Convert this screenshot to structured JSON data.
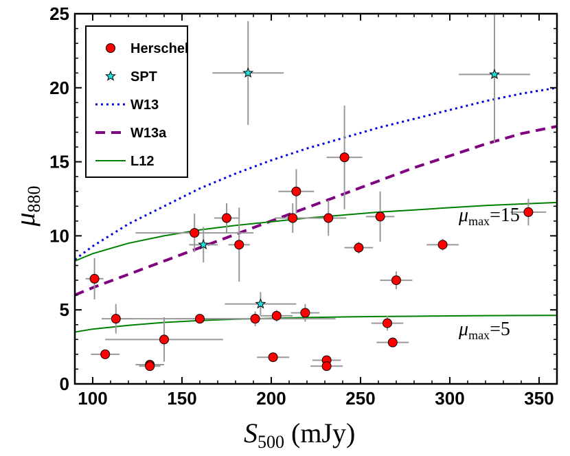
{
  "chart_data": {
    "type": "scatter",
    "xlabel": {
      "main": "S",
      "sub": "500",
      "unit": "(mJy)"
    },
    "ylabel": {
      "main": "μ",
      "sub": "880"
    },
    "xlim": [
      90,
      360
    ],
    "ylim": [
      0,
      25
    ],
    "x_ticks": [
      100,
      150,
      200,
      250,
      300,
      350
    ],
    "y_ticks": [
      0,
      5,
      10,
      15,
      20,
      25
    ],
    "grid": false,
    "legend_position": "top-left",
    "legend": [
      {
        "label": "Herschel",
        "style": "marker-circle",
        "color": "#ff0000"
      },
      {
        "label": "SPT",
        "style": "marker-star",
        "color": "#20e0e0"
      },
      {
        "label": "W13",
        "style": "dotted",
        "color": "#0000dd"
      },
      {
        "label": "W13a",
        "style": "dashed",
        "color": "#800080"
      },
      {
        "label": "L12",
        "style": "solid",
        "color": "#008000"
      }
    ],
    "annotations": [
      {
        "prefix": "μ",
        "sub": "max",
        "suffix": "=15",
        "x": 305,
        "y": 11
      },
      {
        "prefix": "μ",
        "sub": "max",
        "suffix": "=5",
        "x": 305,
        "y": 3.3
      }
    ],
    "series": [
      {
        "name": "Herschel",
        "type": "scatter",
        "points": [
          {
            "x": 101,
            "y": 7.1,
            "xerr": 5,
            "yerr": 1.4
          },
          {
            "x": 107,
            "y": 2.0,
            "xerr": 8,
            "yerr": 0
          },
          {
            "x": 113,
            "y": 4.4,
            "xerr": 8,
            "yerr": 1.0
          },
          {
            "x": 132,
            "y": 1.3,
            "xerr": 8,
            "yerr": 0.2
          },
          {
            "x": 132,
            "y": 1.2,
            "xerr": 6,
            "yerr": 0.1
          },
          {
            "x": 140,
            "y": 3.0,
            "xerr": 33,
            "yerr": 1.5
          },
          {
            "x": 157,
            "y": 10.2,
            "xerr": 33,
            "yerr": 1.3
          },
          {
            "x": 160,
            "y": 4.4,
            "xerr": 45,
            "yerr": 0.3
          },
          {
            "x": 175,
            "y": 11.2,
            "xerr": 7,
            "yerr": 1.0
          },
          {
            "x": 182,
            "y": 9.4,
            "xerr": 6,
            "yerr": 2.5
          },
          {
            "x": 191,
            "y": 4.4,
            "xerr": 45,
            "yerr": 0.5
          },
          {
            "x": 201,
            "y": 1.8,
            "xerr": 9,
            "yerr": 0.3
          },
          {
            "x": 203,
            "y": 4.6,
            "xerr": 9,
            "yerr": 0.4
          },
          {
            "x": 212,
            "y": 11.2,
            "xerr": 10,
            "yerr": 1.0
          },
          {
            "x": 214,
            "y": 13.0,
            "xerr": 10,
            "yerr": 1.5
          },
          {
            "x": 219,
            "y": 4.8,
            "xerr": 8,
            "yerr": 0.6
          },
          {
            "x": 231,
            "y": 1.6,
            "xerr": 8,
            "yerr": 0.3
          },
          {
            "x": 231,
            "y": 1.2,
            "xerr": 9,
            "yerr": 0.2
          },
          {
            "x": 232,
            "y": 11.2,
            "xerr": 10,
            "yerr": 1.2
          },
          {
            "x": 241,
            "y": 15.3,
            "xerr": 10,
            "yerr": 3.5
          },
          {
            "x": 249,
            "y": 9.2,
            "xerr": 8,
            "yerr": 0.4
          },
          {
            "x": 261,
            "y": 11.3,
            "xerr": 8,
            "yerr": 1.7
          },
          {
            "x": 265,
            "y": 4.1,
            "xerr": 9,
            "yerr": 0.5
          },
          {
            "x": 268,
            "y": 2.8,
            "xerr": 9,
            "yerr": 0.2
          },
          {
            "x": 270,
            "y": 7.0,
            "xerr": 9,
            "yerr": 0.6
          },
          {
            "x": 296,
            "y": 9.4,
            "xerr": 9,
            "yerr": 0.4
          },
          {
            "x": 344,
            "y": 11.6,
            "xerr": 10,
            "yerr": 0.9
          }
        ]
      },
      {
        "name": "SPT",
        "type": "scatter",
        "points": [
          {
            "x": 162,
            "y": 9.4,
            "xerr": 8,
            "yerr": 1.2
          },
          {
            "x": 187,
            "y": 21.0,
            "xerr": 20,
            "yerr": 3.5
          },
          {
            "x": 194,
            "y": 5.4,
            "xerr": 20,
            "yerr": 0.8
          },
          {
            "x": 325,
            "y": 20.9,
            "xerr": 20,
            "yerr": 4.6
          }
        ]
      },
      {
        "name": "W13",
        "type": "line",
        "x": [
          90,
          100,
          120,
          140,
          160,
          180,
          200,
          220,
          240,
          260,
          280,
          300,
          320,
          340,
          360
        ],
        "y": [
          8.4,
          9.3,
          10.8,
          12.0,
          13.2,
          14.2,
          15.1,
          15.9,
          16.6,
          17.3,
          17.9,
          18.5,
          19.1,
          19.6,
          20.0
        ]
      },
      {
        "name": "W13a",
        "type": "line",
        "x": [
          90,
          100,
          120,
          140,
          160,
          180,
          200,
          220,
          240,
          260,
          280,
          300,
          320,
          340,
          360
        ],
        "y": [
          6.0,
          6.5,
          7.4,
          8.3,
          9.2,
          10.1,
          11.0,
          11.9,
          12.8,
          13.7,
          14.6,
          15.4,
          16.2,
          16.9,
          17.4
        ]
      },
      {
        "name": "L12 (μmax=15)",
        "type": "line",
        "x": [
          90,
          100,
          120,
          140,
          160,
          180,
          200,
          220,
          240,
          260,
          280,
          300,
          320,
          340,
          360
        ],
        "y": [
          8.3,
          8.8,
          9.5,
          10.0,
          10.4,
          10.7,
          10.95,
          11.2,
          11.4,
          11.6,
          11.75,
          11.9,
          12.05,
          12.15,
          12.25
        ]
      },
      {
        "name": "L12 (μmax=5)",
        "type": "line",
        "x": [
          90,
          100,
          120,
          140,
          160,
          180,
          200,
          220,
          240,
          260,
          280,
          300,
          320,
          340,
          360
        ],
        "y": [
          3.5,
          3.7,
          3.95,
          4.15,
          4.28,
          4.37,
          4.43,
          4.48,
          4.52,
          4.55,
          4.57,
          4.59,
          4.61,
          4.62,
          4.63
        ]
      }
    ]
  }
}
